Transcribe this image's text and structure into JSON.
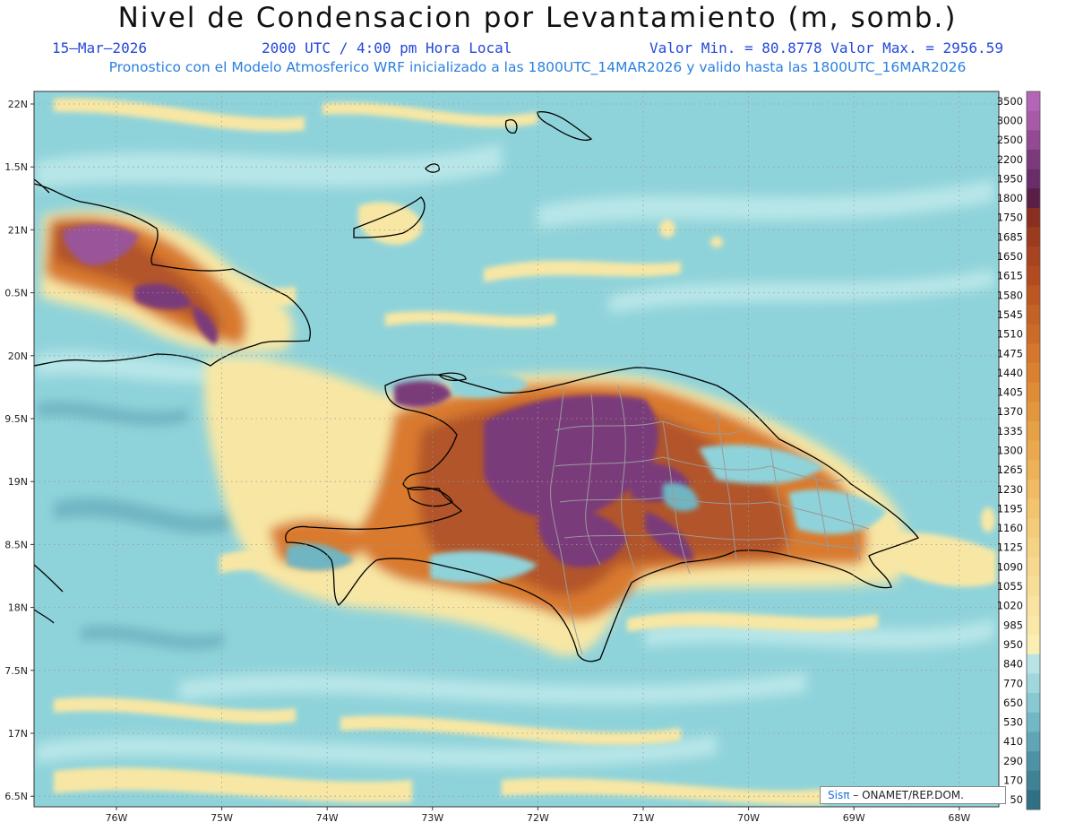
{
  "header": {
    "title": "Nivel de Condensacion por Levantamiento (m, somb.)",
    "date": "15–Mar–2026",
    "time": "2000 UTC / 4:00 pm Hora Local",
    "minmax": "Valor Min. = 80.8778   Valor Max. = 2956.59",
    "model_note": "Pronostico con el Modelo Atmosferico WRF inicializado a las 1800UTC_14MAR2026 y valido hasta las  1800UTC_16MAR2026"
  },
  "axes": {
    "lat_labels": [
      "22N",
      "1.5N",
      "21N",
      "0.5N",
      "20N",
      "9.5N",
      "19N",
      "8.5N",
      "18N",
      "7.5N",
      "17N",
      "6.5N"
    ],
    "lon_labels": [
      "76W",
      "75W",
      "74W",
      "73W",
      "72W",
      "71W",
      "70W",
      "69W",
      "68W"
    ]
  },
  "colorbar": {
    "levels": [
      "3500",
      "3000",
      "2500",
      "2200",
      "1950",
      "1800",
      "1750",
      "1685",
      "1650",
      "1615",
      "1580",
      "1545",
      "1510",
      "1475",
      "1440",
      "1405",
      "1370",
      "1335",
      "1300",
      "1265",
      "1230",
      "1195",
      "1160",
      "1125",
      "1090",
      "1055",
      "1020",
      "985",
      "950",
      "840",
      "770",
      "650",
      "530",
      "410",
      "290",
      "170",
      "50"
    ],
    "colors": [
      "#b565b8",
      "#a85aa8",
      "#934a92",
      "#7c3a7c",
      "#6a2d6a",
      "#5a1f46",
      "#8a2f1f",
      "#9c3a1e",
      "#a8431f",
      "#b24c20",
      "#bc5722",
      "#c46124",
      "#cc6b27",
      "#d4762b",
      "#da8130",
      "#de8c36",
      "#e2963d",
      "#e6a045",
      "#eaa94e",
      "#edb257",
      "#f0bb62",
      "#f2c46d",
      "#f4cc79",
      "#f5d385",
      "#f6d98f",
      "#f7de98",
      "#f8e3a0",
      "#f9e8a8",
      "#faeeb2",
      "#b8e4e6",
      "#9fd7dd",
      "#87c8d2",
      "#72b7c4",
      "#5fa5b5",
      "#4e93a5",
      "#3f8294",
      "#2f7084"
    ]
  },
  "credit": {
    "brand": "Sisπ",
    "org": "– ONAMET/REP.DOM."
  },
  "colors": {
    "sea": "#8fd3da",
    "sea_light": "#b7e6e8",
    "yellow": "#f8e7a4",
    "orange": "#d97a2f",
    "rust": "#b2552a",
    "purple": "#7a3b7a",
    "coast": "#000000",
    "province": "#9a9a9a",
    "header_blue": "#2448d8",
    "note_blue": "#2a7fe0"
  }
}
